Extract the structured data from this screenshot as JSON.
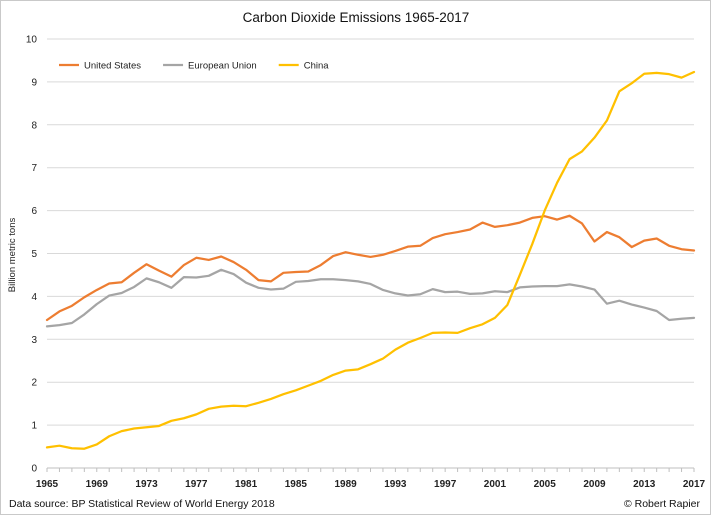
{
  "chart_data": {
    "type": "line",
    "title": "Carbon Dioxide Emissions 1965-2017",
    "xlabel": "",
    "ylabel": "Billion metric tons",
    "ylim": [
      0,
      10
    ],
    "yticks": [
      0,
      1,
      2,
      3,
      4,
      5,
      6,
      7,
      8,
      9,
      10
    ],
    "xlim": [
      1965,
      2017
    ],
    "xticks": [
      1965,
      1969,
      1973,
      1977,
      1981,
      1985,
      1989,
      1993,
      1997,
      2001,
      2005,
      2009,
      2013,
      2017
    ],
    "grid": "horizontal",
    "legend_position": "top-left",
    "x": [
      1965,
      1966,
      1967,
      1968,
      1969,
      1970,
      1971,
      1972,
      1973,
      1974,
      1975,
      1976,
      1977,
      1978,
      1979,
      1980,
      1981,
      1982,
      1983,
      1984,
      1985,
      1986,
      1987,
      1988,
      1989,
      1990,
      1991,
      1992,
      1993,
      1994,
      1995,
      1996,
      1997,
      1998,
      1999,
      2000,
      2001,
      2002,
      2003,
      2004,
      2005,
      2006,
      2007,
      2008,
      2009,
      2010,
      2011,
      2012,
      2013,
      2014,
      2015,
      2016,
      2017
    ],
    "series": [
      {
        "name": "United States",
        "color": "#ED7D31",
        "values": [
          3.45,
          3.65,
          3.78,
          3.98,
          4.15,
          4.3,
          4.33,
          4.55,
          4.75,
          4.6,
          4.46,
          4.73,
          4.9,
          4.85,
          4.93,
          4.8,
          4.62,
          4.38,
          4.35,
          4.55,
          4.57,
          4.58,
          4.73,
          4.94,
          5.03,
          4.97,
          4.92,
          4.97,
          5.06,
          5.16,
          5.18,
          5.36,
          5.45,
          5.5,
          5.56,
          5.72,
          5.62,
          5.66,
          5.72,
          5.83,
          5.87,
          5.79,
          5.88,
          5.7,
          5.28,
          5.5,
          5.38,
          5.15,
          5.3,
          5.35,
          5.18,
          5.1,
          5.07
        ]
      },
      {
        "name": "European Union",
        "color": "#A5A5A5",
        "values": [
          3.3,
          3.33,
          3.38,
          3.58,
          3.82,
          4.02,
          4.08,
          4.22,
          4.42,
          4.33,
          4.2,
          4.45,
          4.44,
          4.48,
          4.62,
          4.52,
          4.32,
          4.2,
          4.16,
          4.18,
          4.34,
          4.36,
          4.4,
          4.4,
          4.38,
          4.35,
          4.29,
          4.15,
          4.07,
          4.02,
          4.05,
          4.17,
          4.1,
          4.11,
          4.06,
          4.07,
          4.12,
          4.1,
          4.21,
          4.23,
          4.24,
          4.24,
          4.28,
          4.23,
          4.16,
          3.83,
          3.9,
          3.81,
          3.74,
          3.66,
          3.45,
          3.48,
          3.5
        ]
      },
      {
        "name": "China",
        "color": "#FFC000",
        "values": [
          0.48,
          0.52,
          0.46,
          0.45,
          0.55,
          0.74,
          0.86,
          0.92,
          0.95,
          0.98,
          1.1,
          1.16,
          1.25,
          1.38,
          1.43,
          1.45,
          1.44,
          1.52,
          1.61,
          1.72,
          1.81,
          1.92,
          2.03,
          2.17,
          2.27,
          2.3,
          2.42,
          2.55,
          2.76,
          2.92,
          3.03,
          3.15,
          3.16,
          3.15,
          3.26,
          3.35,
          3.5,
          3.8,
          4.5,
          5.22,
          6.0,
          6.65,
          7.2,
          7.38,
          7.7,
          8.1,
          8.78,
          8.97,
          9.19,
          9.21,
          9.18,
          9.1,
          9.23
        ]
      }
    ]
  },
  "footer": {
    "source": "Data source: BP Statistical Review of World Energy 2018",
    "credit": "© Robert Rapier"
  }
}
